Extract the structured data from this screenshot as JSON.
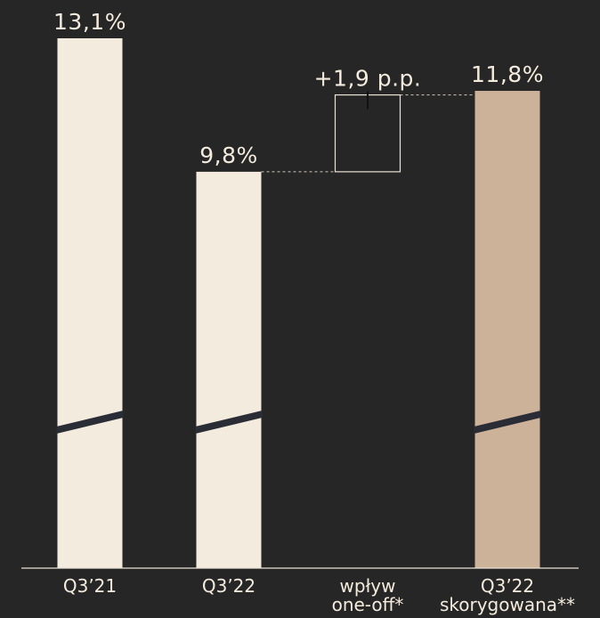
{
  "chart_data": {
    "type": "bar",
    "subtype": "waterfall",
    "axis_break": true,
    "categories": [
      "Q3’21",
      "Q3’22",
      "wpływ one-off*",
      "Q3’22 skorygowana**"
    ],
    "category_lines": [
      [
        "Q3’21"
      ],
      [
        "Q3’22"
      ],
      [
        "wpływ",
        "one-off*"
      ],
      [
        "Q3’22",
        "skorygowana**"
      ]
    ],
    "values": [
      13.1,
      9.8,
      1.9,
      11.8
    ],
    "value_labels": [
      "13,1%",
      "9,8%",
      "+1,9 p.p.",
      "11,8%"
    ],
    "bar_kinds": [
      "total",
      "total",
      "delta",
      "total"
    ],
    "title": "",
    "xlabel": "",
    "ylabel": "",
    "ylim": [
      0,
      13.1
    ],
    "grid": false,
    "legend": "none",
    "colors": {
      "background": "#272626",
      "bar": "#f3ebdd",
      "bar_highlight": "#cdb29a",
      "delta_outline": "#e9e2d6",
      "connector": "#cfc8bc",
      "axis": "#e9e2d6",
      "break_mark": "#2a2d36",
      "text": "#f3ebdd"
    }
  }
}
